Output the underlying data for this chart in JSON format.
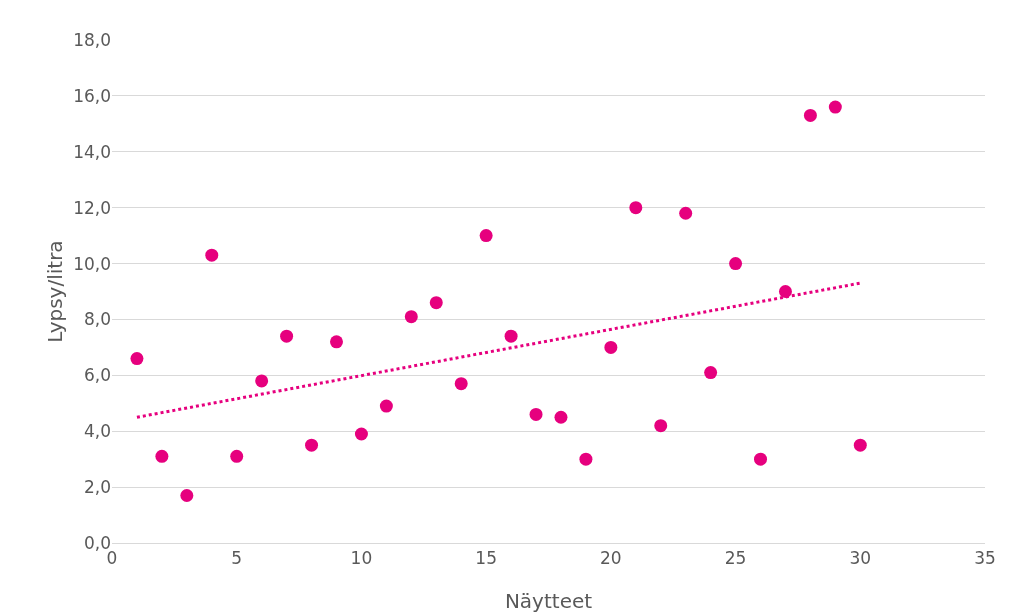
{
  "chart_data": {
    "type": "scatter",
    "xlabel": "Näytteet",
    "ylabel": "Lypsy/litra",
    "x": [
      1,
      2,
      3,
      4,
      5,
      6,
      7,
      8,
      9,
      10,
      11,
      12,
      13,
      14,
      15,
      16,
      17,
      18,
      19,
      20,
      21,
      22,
      23,
      24,
      25,
      26,
      27,
      28,
      29,
      30
    ],
    "series": [
      {
        "color": "#e6007e",
        "marker": "circle",
        "values": [
          6.6,
          3.1,
          1.7,
          10.3,
          3.1,
          5.8,
          7.4,
          3.5,
          7.2,
          3.9,
          4.9,
          8.1,
          8.6,
          5.7,
          11.0,
          7.4,
          4.6,
          4.5,
          3.0,
          7.0,
          12.0,
          4.2,
          11.8,
          6.1,
          10.0,
          3.0,
          9.0,
          15.3,
          15.6,
          3.5
        ]
      },
      {
        "type": "line",
        "color": "#e6007e",
        "line_style": "dotted",
        "marker": "none",
        "x": [
          1,
          30
        ],
        "values": [
          4.5,
          9.3
        ]
      }
    ],
    "xlim": [
      0,
      35
    ],
    "xticks": [
      0,
      5,
      10,
      15,
      20,
      25,
      30,
      35
    ],
    "ylim": [
      0,
      18
    ],
    "yticks": [
      {
        "value": 0,
        "label": "0,0"
      },
      {
        "value": 2,
        "label": "2,0"
      },
      {
        "value": 4,
        "label": "4,0"
      },
      {
        "value": 6,
        "label": "6,0"
      },
      {
        "value": 8,
        "label": "8,0"
      },
      {
        "value": 10,
        "label": "10,0"
      },
      {
        "value": 12,
        "label": "12,0"
      },
      {
        "value": 14,
        "label": "14,0"
      },
      {
        "value": 16,
        "label": "16,0"
      },
      {
        "value": 18,
        "label": "18,0"
      }
    ],
    "grid": "y"
  }
}
